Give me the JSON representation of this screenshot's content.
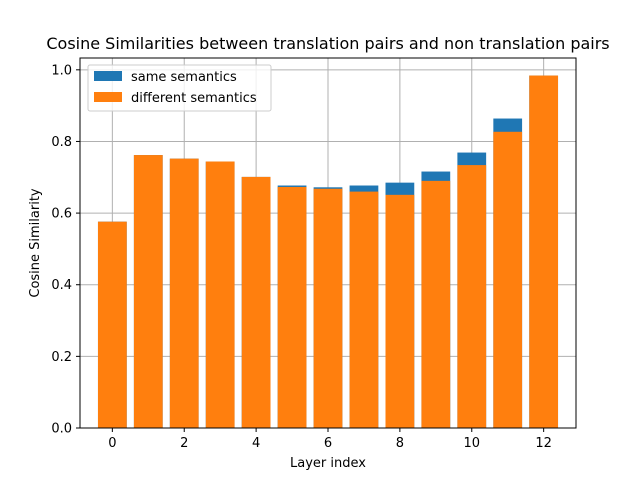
{
  "chart_data": {
    "type": "bar",
    "title": "Cosine Similarities between translation pairs and non translation pairs",
    "xlabel": "Layer index",
    "ylabel": "Cosine Similarity",
    "categories": [
      0,
      1,
      2,
      3,
      4,
      5,
      6,
      7,
      8,
      9,
      10,
      11,
      12
    ],
    "series": [
      {
        "name": "same semantics",
        "color": "#1f77b4",
        "values": [
          0.576,
          0.762,
          0.752,
          0.744,
          0.701,
          0.677,
          0.672,
          0.677,
          0.685,
          0.716,
          0.769,
          0.864,
          0.984
        ]
      },
      {
        "name": "different semantics",
        "color": "#ff7f0e",
        "values": [
          0.576,
          0.762,
          0.752,
          0.744,
          0.701,
          0.673,
          0.668,
          0.66,
          0.651,
          0.69,
          0.734,
          0.827,
          0.984
        ]
      }
    ],
    "xlim": [
      -0.9,
      12.9
    ],
    "ylim": [
      0.0,
      1.033
    ],
    "xticks": [
      "0",
      "2",
      "4",
      "6",
      "8",
      "10",
      "12"
    ],
    "yticks": [
      "0.0",
      "0.2",
      "0.4",
      "0.6",
      "0.8",
      "1.0"
    ],
    "grid": true,
    "legend_position": "top-left",
    "bars_overlaid": true,
    "grid_color": "#b0b0b0"
  }
}
